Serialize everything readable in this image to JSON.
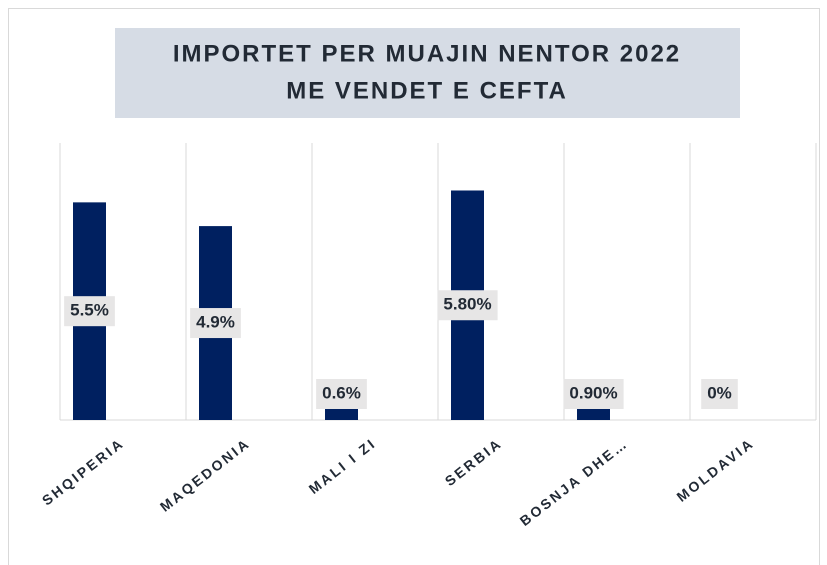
{
  "chart_data": {
    "type": "bar",
    "title": [
      "IMPORTET PER MUAJIN NENTOR 2022",
      "ME VENDET E CEFTA"
    ],
    "categories": [
      "SHQIPERIA",
      "MAQEDONIA",
      "MALI I ZI",
      "SERBIA",
      "BOSNJA DHE…",
      "MOLDAVIA"
    ],
    "values": [
      5.5,
      4.9,
      0.6,
      5.8,
      0.9,
      0
    ],
    "value_labels": [
      "5.5%",
      "4.9%",
      "0.6%",
      "5.80%",
      "0.90%",
      "0%"
    ],
    "color": "#002060",
    "ylim": [
      0,
      7
    ]
  }
}
